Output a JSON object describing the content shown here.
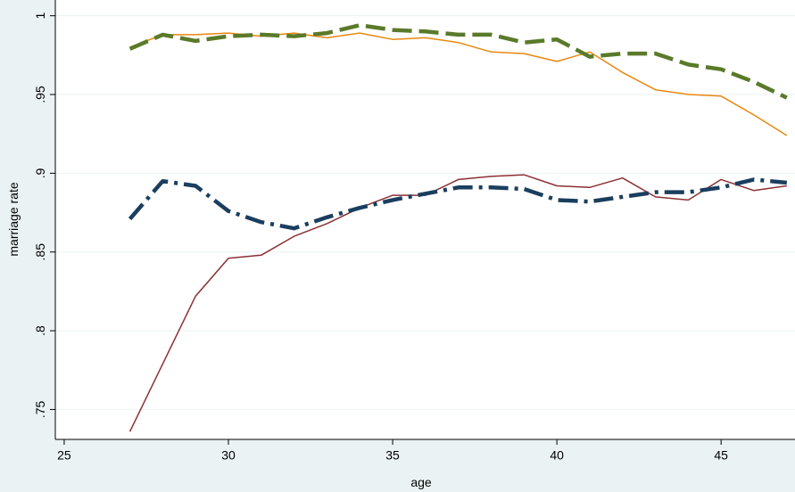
{
  "chart_data": {
    "type": "line",
    "x_label": "age",
    "y_label": "marriage rate",
    "x": [
      27,
      28,
      29,
      30,
      31,
      32,
      33,
      34,
      35,
      36,
      37,
      38,
      39,
      40,
      41,
      42,
      43,
      44,
      45,
      46,
      47
    ],
    "series": [
      {
        "color": "#e8870e",
        "width": 1.5,
        "dash": "none",
        "values": [
          0.98,
          0.988,
          0.988,
          0.989,
          0.987,
          0.989,
          0.986,
          0.989,
          0.985,
          0.986,
          0.983,
          0.977,
          0.976,
          0.971,
          0.977,
          0.964,
          0.953,
          0.95,
          0.949,
          0.937,
          0.924
        ]
      },
      {
        "color": "#5a7a2a",
        "width": 4.5,
        "dash": "22 8",
        "values": [
          0.979,
          0.988,
          0.984,
          0.987,
          0.988,
          0.987,
          0.989,
          0.994,
          0.991,
          0.99,
          0.988,
          0.988,
          0.983,
          0.985,
          0.974,
          0.976,
          0.976,
          0.969,
          0.966,
          0.958,
          0.948
        ]
      },
      {
        "color": "#8b3034",
        "width": 1.5,
        "dash": "none",
        "values": [
          0.736,
          0.779,
          0.822,
          0.846,
          0.848,
          0.86,
          0.868,
          0.878,
          0.886,
          0.886,
          0.896,
          0.898,
          0.899,
          0.892,
          0.891,
          0.897,
          0.885,
          0.883,
          0.896,
          0.889,
          0.892
        ]
      },
      {
        "color": "#1a3e5e",
        "width": 4.5,
        "dash": "22 7 4 7",
        "values": [
          0.871,
          0.895,
          0.892,
          0.876,
          0.869,
          0.865,
          0.872,
          0.878,
          0.883,
          0.887,
          0.891,
          0.891,
          0.89,
          0.883,
          0.882,
          0.885,
          0.888,
          0.888,
          0.891,
          0.896,
          0.894
        ]
      }
    ],
    "xlim": [
      24.73,
      47.25
    ],
    "ylim": [
      0.731,
      1.01
    ],
    "xticks": [
      25,
      30,
      35,
      40,
      45
    ],
    "yticks": [
      {
        "value": 0.75,
        "label": ".75"
      },
      {
        "value": 0.8,
        "label": ".8"
      },
      {
        "value": 0.85,
        "label": ".85"
      },
      {
        "value": 0.9,
        "label": ".9"
      },
      {
        "value": 0.95,
        "label": ".95"
      },
      1
    ],
    "grid": true
  }
}
